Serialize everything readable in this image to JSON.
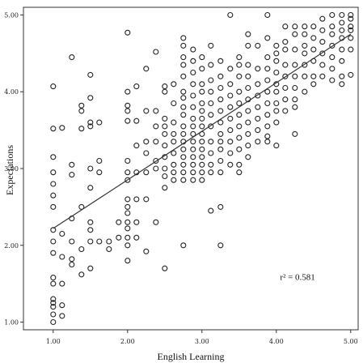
{
  "chart_data": {
    "type": "scatter",
    "xlabel": "English Learning",
    "ylabel": "Expectations",
    "xlim": [
      0.6,
      5.1
    ],
    "ylim": [
      0.9,
      5.1
    ],
    "x_ticks": [
      "1.00",
      "2.00",
      "3.00",
      "4.00",
      "5.00"
    ],
    "y_ticks": [
      "1.00",
      "2.00",
      "3.00",
      "4.00",
      "5.00"
    ],
    "grid": false,
    "legend": "none",
    "fit_line": {
      "x": [
        1.0,
        5.0
      ],
      "y": [
        2.22,
        4.75
      ]
    },
    "annotation": {
      "text": "r² = 0.581",
      "x": 4.05,
      "y": 1.55
    },
    "points": [
      [
        1.0,
        1.0
      ],
      [
        1.0,
        1.1
      ],
      [
        1.0,
        1.2
      ],
      [
        1.0,
        1.25
      ],
      [
        1.0,
        1.3
      ],
      [
        1.0,
        1.5
      ],
      [
        1.0,
        1.58
      ],
      [
        1.0,
        1.9
      ],
      [
        1.0,
        2.05
      ],
      [
        1.0,
        2.2
      ],
      [
        1.0,
        2.5
      ],
      [
        1.0,
        2.65
      ],
      [
        1.0,
        2.8
      ],
      [
        1.0,
        2.95
      ],
      [
        1.0,
        3.15
      ],
      [
        1.0,
        3.52
      ],
      [
        1.0,
        4.07
      ],
      [
        1.12,
        1.08
      ],
      [
        1.12,
        1.22
      ],
      [
        1.12,
        1.5
      ],
      [
        1.12,
        1.85
      ],
      [
        1.12,
        2.15
      ],
      [
        1.12,
        3.53
      ],
      [
        1.25,
        1.75
      ],
      [
        1.25,
        1.82
      ],
      [
        1.25,
        2.05
      ],
      [
        1.25,
        2.35
      ],
      [
        1.25,
        2.92
      ],
      [
        1.25,
        3.05
      ],
      [
        1.25,
        4.45
      ],
      [
        1.38,
        1.62
      ],
      [
        1.38,
        1.95
      ],
      [
        1.38,
        2.5
      ],
      [
        1.38,
        3.52
      ],
      [
        1.38,
        3.75
      ],
      [
        1.38,
        3.82
      ],
      [
        1.5,
        1.7
      ],
      [
        1.5,
        2.05
      ],
      [
        1.5,
        2.2
      ],
      [
        1.5,
        2.3
      ],
      [
        1.5,
        2.75
      ],
      [
        1.5,
        3.0
      ],
      [
        1.5,
        3.55
      ],
      [
        1.5,
        3.6
      ],
      [
        1.5,
        3.92
      ],
      [
        1.5,
        4.22
      ],
      [
        1.62,
        2.05
      ],
      [
        1.62,
        2.95
      ],
      [
        1.62,
        3.1
      ],
      [
        1.62,
        3.6
      ],
      [
        1.75,
        1.95
      ],
      [
        1.75,
        2.05
      ],
      [
        1.88,
        2.1
      ],
      [
        1.88,
        2.3
      ],
      [
        2.0,
        1.8
      ],
      [
        2.0,
        2.0
      ],
      [
        2.0,
        2.1
      ],
      [
        2.0,
        2.22
      ],
      [
        2.0,
        2.3
      ],
      [
        2.0,
        2.42
      ],
      [
        2.0,
        2.5
      ],
      [
        2.0,
        2.6
      ],
      [
        2.0,
        2.85
      ],
      [
        2.0,
        2.95
      ],
      [
        2.0,
        3.1
      ],
      [
        2.0,
        3.62
      ],
      [
        2.0,
        3.75
      ],
      [
        2.0,
        3.82
      ],
      [
        2.0,
        4.0
      ],
      [
        2.0,
        4.77
      ],
      [
        2.12,
        2.1
      ],
      [
        2.12,
        2.3
      ],
      [
        2.12,
        2.6
      ],
      [
        2.12,
        2.95
      ],
      [
        2.12,
        3.3
      ],
      [
        2.12,
        3.62
      ],
      [
        2.12,
        4.07
      ],
      [
        2.25,
        1.92
      ],
      [
        2.25,
        2.6
      ],
      [
        2.25,
        2.95
      ],
      [
        2.25,
        3.2
      ],
      [
        2.25,
        3.35
      ],
      [
        2.25,
        3.75
      ],
      [
        2.25,
        4.3
      ],
      [
        2.38,
        2.3
      ],
      [
        2.38,
        3.0
      ],
      [
        2.38,
        3.1
      ],
      [
        2.38,
        3.35
      ],
      [
        2.38,
        3.55
      ],
      [
        2.38,
        3.75
      ],
      [
        2.38,
        4.52
      ],
      [
        2.5,
        1.7
      ],
      [
        2.5,
        2.75
      ],
      [
        2.5,
        2.9
      ],
      [
        2.5,
        3.0
      ],
      [
        2.5,
        3.15
      ],
      [
        2.5,
        3.3
      ],
      [
        2.5,
        3.45
      ],
      [
        2.5,
        3.55
      ],
      [
        2.5,
        3.65
      ],
      [
        2.5,
        4.0
      ],
      [
        2.5,
        4.07
      ],
      [
        2.62,
        2.85
      ],
      [
        2.62,
        2.95
      ],
      [
        2.62,
        3.05
      ],
      [
        2.62,
        3.2
      ],
      [
        2.62,
        3.35
      ],
      [
        2.62,
        3.45
      ],
      [
        2.62,
        3.6
      ],
      [
        2.62,
        3.85
      ],
      [
        2.62,
        4.1
      ],
      [
        2.75,
        2.0
      ],
      [
        2.75,
        2.85
      ],
      [
        2.75,
        2.95
      ],
      [
        2.75,
        3.05
      ],
      [
        2.75,
        3.15
      ],
      [
        2.75,
        3.25
      ],
      [
        2.75,
        3.35
      ],
      [
        2.75,
        3.45
      ],
      [
        2.75,
        3.55
      ],
      [
        2.75,
        3.7
      ],
      [
        2.75,
        3.8
      ],
      [
        2.75,
        3.92
      ],
      [
        2.75,
        4.0
      ],
      [
        2.75,
        4.2
      ],
      [
        2.75,
        4.35
      ],
      [
        2.75,
        4.45
      ],
      [
        2.75,
        4.6
      ],
      [
        2.75,
        4.7
      ],
      [
        2.88,
        2.85
      ],
      [
        2.88,
        2.95
      ],
      [
        2.88,
        3.05
      ],
      [
        2.88,
        3.15
      ],
      [
        2.88,
        3.25
      ],
      [
        2.88,
        3.35
      ],
      [
        2.88,
        3.45
      ],
      [
        2.88,
        3.55
      ],
      [
        2.88,
        3.65
      ],
      [
        2.88,
        3.8
      ],
      [
        2.88,
        3.95
      ],
      [
        2.88,
        4.1
      ],
      [
        2.88,
        4.25
      ],
      [
        2.88,
        4.4
      ],
      [
        2.88,
        4.55
      ],
      [
        3.0,
        2.85
      ],
      [
        3.0,
        2.95
      ],
      [
        3.0,
        3.05
      ],
      [
        3.0,
        3.15
      ],
      [
        3.0,
        3.25
      ],
      [
        3.0,
        3.35
      ],
      [
        3.0,
        3.45
      ],
      [
        3.0,
        3.55
      ],
      [
        3.0,
        3.65
      ],
      [
        3.0,
        3.75
      ],
      [
        3.0,
        3.85
      ],
      [
        3.0,
        4.0
      ],
      [
        3.0,
        4.1
      ],
      [
        3.0,
        4.3
      ],
      [
        3.0,
        4.45
      ],
      [
        3.12,
        2.45
      ],
      [
        3.12,
        2.95
      ],
      [
        3.12,
        3.05
      ],
      [
        3.12,
        3.2
      ],
      [
        3.12,
        3.35
      ],
      [
        3.12,
        3.55
      ],
      [
        3.12,
        3.7
      ],
      [
        3.12,
        3.85
      ],
      [
        3.12,
        4.0
      ],
      [
        3.12,
        4.15
      ],
      [
        3.12,
        4.35
      ],
      [
        3.12,
        4.6
      ],
      [
        3.25,
        2.0
      ],
      [
        3.25,
        2.5
      ],
      [
        3.25,
        2.95
      ],
      [
        3.25,
        3.1
      ],
      [
        3.25,
        3.25
      ],
      [
        3.25,
        3.35
      ],
      [
        3.25,
        3.45
      ],
      [
        3.25,
        3.6
      ],
      [
        3.25,
        3.75
      ],
      [
        3.25,
        3.9
      ],
      [
        3.25,
        4.05
      ],
      [
        3.25,
        4.2
      ],
      [
        3.25,
        4.4
      ],
      [
        3.38,
        3.05
      ],
      [
        3.38,
        3.2
      ],
      [
        3.38,
        3.35
      ],
      [
        3.38,
        3.5
      ],
      [
        3.38,
        3.65
      ],
      [
        3.38,
        3.8
      ],
      [
        3.38,
        3.95
      ],
      [
        3.38,
        4.1
      ],
      [
        3.38,
        4.3
      ],
      [
        3.38,
        5.0
      ],
      [
        3.5,
        2.95
      ],
      [
        3.5,
        3.05
      ],
      [
        3.5,
        3.25
      ],
      [
        3.5,
        3.4
      ],
      [
        3.5,
        3.55
      ],
      [
        3.5,
        3.7
      ],
      [
        3.5,
        3.85
      ],
      [
        3.5,
        4.0
      ],
      [
        3.5,
        4.2
      ],
      [
        3.5,
        4.35
      ],
      [
        3.5,
        4.45
      ],
      [
        3.62,
        3.15
      ],
      [
        3.62,
        3.3
      ],
      [
        3.62,
        3.45
      ],
      [
        3.62,
        3.6
      ],
      [
        3.62,
        3.75
      ],
      [
        3.62,
        3.9
      ],
      [
        3.62,
        4.05
      ],
      [
        3.62,
        4.2
      ],
      [
        3.62,
        4.35
      ],
      [
        3.62,
        4.6
      ],
      [
        3.62,
        4.75
      ],
      [
        3.75,
        3.35
      ],
      [
        3.75,
        3.5
      ],
      [
        3.75,
        3.65
      ],
      [
        3.75,
        3.8
      ],
      [
        3.75,
        3.95
      ],
      [
        3.75,
        4.1
      ],
      [
        3.75,
        4.3
      ],
      [
        3.75,
        4.6
      ],
      [
        3.88,
        3.35
      ],
      [
        3.88,
        3.42
      ],
      [
        3.88,
        3.55
      ],
      [
        3.88,
        3.7
      ],
      [
        3.88,
        3.85
      ],
      [
        3.88,
        4.0
      ],
      [
        3.88,
        4.15
      ],
      [
        3.88,
        4.3
      ],
      [
        3.88,
        4.45
      ],
      [
        3.88,
        4.7
      ],
      [
        3.88,
        5.0
      ],
      [
        4.0,
        3.3
      ],
      [
        4.0,
        3.6
      ],
      [
        4.0,
        3.75
      ],
      [
        4.0,
        3.85
      ],
      [
        4.0,
        4.0
      ],
      [
        4.0,
        4.1
      ],
      [
        4.0,
        4.25
      ],
      [
        4.0,
        4.4
      ],
      [
        4.0,
        4.5
      ],
      [
        4.0,
        4.6
      ],
      [
        4.12,
        3.75
      ],
      [
        4.12,
        3.9
      ],
      [
        4.12,
        4.05
      ],
      [
        4.12,
        4.2
      ],
      [
        4.12,
        4.35
      ],
      [
        4.12,
        4.55
      ],
      [
        4.12,
        4.65
      ],
      [
        4.12,
        4.85
      ],
      [
        4.25,
        3.45
      ],
      [
        4.25,
        3.8
      ],
      [
        4.25,
        3.9
      ],
      [
        4.25,
        4.05
      ],
      [
        4.25,
        4.2
      ],
      [
        4.25,
        4.35
      ],
      [
        4.25,
        4.55
      ],
      [
        4.25,
        4.75
      ],
      [
        4.25,
        4.85
      ],
      [
        4.38,
        4.0
      ],
      [
        4.38,
        4.2
      ],
      [
        4.38,
        4.35
      ],
      [
        4.38,
        4.5
      ],
      [
        4.38,
        4.6
      ],
      [
        4.38,
        4.75
      ],
      [
        4.38,
        4.85
      ],
      [
        4.5,
        4.1
      ],
      [
        4.5,
        4.2
      ],
      [
        4.5,
        4.4
      ],
      [
        4.5,
        4.55
      ],
      [
        4.5,
        4.7
      ],
      [
        4.5,
        4.85
      ],
      [
        4.62,
        4.2
      ],
      [
        4.62,
        4.35
      ],
      [
        4.62,
        4.5
      ],
      [
        4.62,
        4.65
      ],
      [
        4.62,
        4.8
      ],
      [
        4.62,
        4.95
      ],
      [
        4.75,
        4.15
      ],
      [
        4.75,
        4.3
      ],
      [
        4.75,
        4.45
      ],
      [
        4.75,
        4.6
      ],
      [
        4.75,
        4.75
      ],
      [
        4.75,
        4.85
      ],
      [
        4.75,
        5.0
      ],
      [
        4.88,
        4.1
      ],
      [
        4.88,
        4.2
      ],
      [
        4.88,
        4.4
      ],
      [
        4.88,
        4.55
      ],
      [
        4.88,
        4.7
      ],
      [
        4.88,
        4.8
      ],
      [
        4.88,
        4.9
      ],
      [
        4.88,
        5.0
      ],
      [
        5.0,
        4.22
      ],
      [
        5.0,
        4.55
      ],
      [
        5.0,
        4.7
      ],
      [
        5.0,
        4.8
      ],
      [
        5.0,
        4.85
      ],
      [
        5.0,
        4.95
      ],
      [
        5.0,
        5.0
      ]
    ]
  }
}
